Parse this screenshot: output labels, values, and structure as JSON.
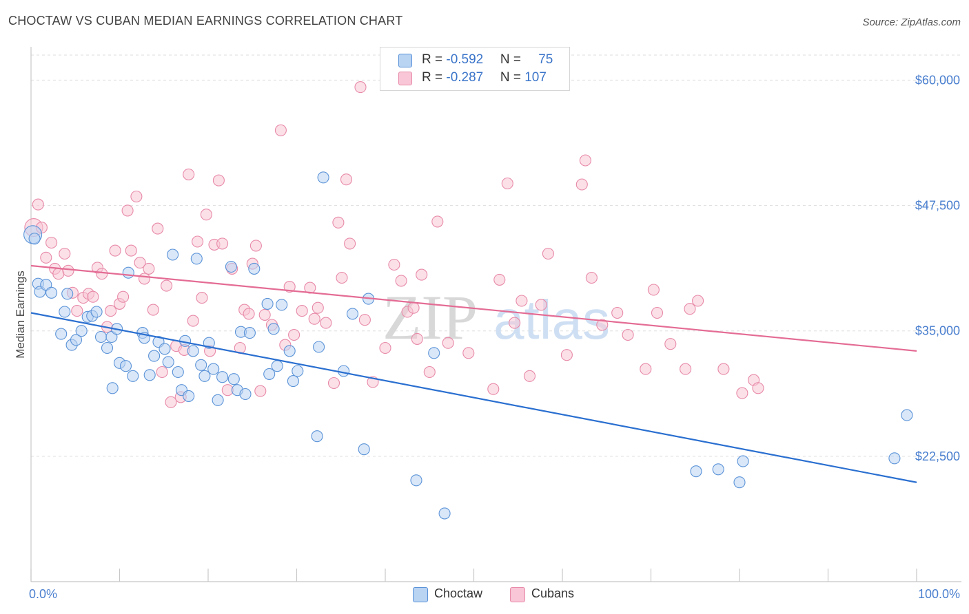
{
  "header": {
    "title": "CHOCTAW VS CUBAN MEDIAN EARNINGS CORRELATION CHART",
    "source": "Source: ZipAtlas.com"
  },
  "colors": {
    "choctaw_fill": "#b9d3f3",
    "choctaw_stroke": "#5b93d8",
    "choctaw_line": "#2a6fd0",
    "cubans_fill": "#f8c6d6",
    "cubans_stroke": "#e88aa8",
    "cubans_line": "#e46c94",
    "axis_text": "#4a7fcf",
    "grid": "#dddddd"
  },
  "legend": {
    "choctaw": {
      "r_label": "R = ",
      "r_value": "-0.592",
      "n_label": "N = ",
      "n_value": "75"
    },
    "cubans": {
      "r_label": "R = ",
      "r_value": "-0.287",
      "n_label": "N = ",
      "n_value": "107"
    }
  },
  "watermark": {
    "part1": "ZIP",
    "part2": "atlas"
  },
  "chart_data": {
    "type": "scatter",
    "title": "CHOCTAW VS CUBAN MEDIAN EARNINGS CORRELATION CHART",
    "xlabel": "",
    "ylabel": "Median Earnings",
    "xlim": [
      0,
      100
    ],
    "ylim": [
      10000,
      62500
    ],
    "x_tick_labels": [
      "0.0%",
      "100.0%"
    ],
    "y_ticks": [
      22500,
      35000,
      47500,
      60000
    ],
    "y_tick_labels": [
      "$22,500",
      "$35,000",
      "$47,500",
      "$60,000"
    ],
    "grid": true,
    "legend_position": "top-center",
    "series": [
      {
        "name": "Choctaw",
        "trend": {
          "x": [
            0,
            100
          ],
          "y": [
            36800,
            19900
          ]
        },
        "points": [
          [
            0.2,
            44600
          ],
          [
            0.8,
            39700
          ],
          [
            1.0,
            38900
          ],
          [
            1.7,
            39600
          ],
          [
            2.3,
            38800
          ],
          [
            3.4,
            34700
          ],
          [
            3.8,
            36900
          ],
          [
            4.1,
            38700
          ],
          [
            4.6,
            33600
          ],
          [
            5.1,
            34100
          ],
          [
            5.7,
            35000
          ],
          [
            6.4,
            36400
          ],
          [
            6.9,
            36500
          ],
          [
            7.4,
            36900
          ],
          [
            7.9,
            34400
          ],
          [
            8.6,
            33300
          ],
          [
            9.1,
            34400
          ],
          [
            9.2,
            29300
          ],
          [
            9.7,
            35200
          ],
          [
            10.0,
            31800
          ],
          [
            10.7,
            31500
          ],
          [
            11.0,
            40800
          ],
          [
            11.5,
            30500
          ],
          [
            12.6,
            34800
          ],
          [
            12.8,
            34300
          ],
          [
            13.4,
            30600
          ],
          [
            13.9,
            32500
          ],
          [
            14.4,
            33900
          ],
          [
            15.1,
            33200
          ],
          [
            15.5,
            31900
          ],
          [
            16.0,
            42600
          ],
          [
            16.6,
            30900
          ],
          [
            17.0,
            29100
          ],
          [
            17.4,
            34000
          ],
          [
            17.8,
            28500
          ],
          [
            18.3,
            33000
          ],
          [
            18.7,
            42200
          ],
          [
            19.2,
            31600
          ],
          [
            19.6,
            30500
          ],
          [
            20.1,
            33800
          ],
          [
            20.6,
            31200
          ],
          [
            21.1,
            28100
          ],
          [
            21.6,
            30400
          ],
          [
            22.6,
            41400
          ],
          [
            22.9,
            30200
          ],
          [
            23.3,
            29100
          ],
          [
            23.7,
            34900
          ],
          [
            24.2,
            28700
          ],
          [
            24.7,
            34800
          ],
          [
            25.2,
            41200
          ],
          [
            26.7,
            37700
          ],
          [
            26.9,
            30700
          ],
          [
            27.4,
            35200
          ],
          [
            27.8,
            31500
          ],
          [
            28.3,
            37600
          ],
          [
            29.2,
            33000
          ],
          [
            29.6,
            30000
          ],
          [
            30.1,
            31000
          ],
          [
            32.3,
            24500
          ],
          [
            32.5,
            33400
          ],
          [
            33.0,
            50300
          ],
          [
            35.3,
            31000
          ],
          [
            36.3,
            36700
          ],
          [
            37.6,
            23200
          ],
          [
            38.1,
            38200
          ],
          [
            43.5,
            20100
          ],
          [
            45.5,
            32800
          ],
          [
            46.7,
            16800
          ],
          [
            75.1,
            21000
          ],
          [
            77.6,
            21200
          ],
          [
            80.0,
            19900
          ],
          [
            80.4,
            22000
          ],
          [
            97.5,
            22300
          ],
          [
            98.9,
            26600
          ],
          [
            0.4,
            44200
          ]
        ]
      },
      {
        "name": "Cubans",
        "trend": {
          "x": [
            0,
            100
          ],
          "y": [
            41500,
            33000
          ]
        },
        "points": [
          [
            0.3,
            45300
          ],
          [
            0.8,
            47600
          ],
          [
            1.2,
            45300
          ],
          [
            1.7,
            42300
          ],
          [
            2.3,
            43800
          ],
          [
            2.7,
            41200
          ],
          [
            3.1,
            40700
          ],
          [
            3.8,
            42700
          ],
          [
            4.2,
            41000
          ],
          [
            4.7,
            38800
          ],
          [
            5.2,
            37000
          ],
          [
            5.9,
            38300
          ],
          [
            6.5,
            38700
          ],
          [
            7.0,
            38400
          ],
          [
            7.5,
            41300
          ],
          [
            8.0,
            40700
          ],
          [
            8.6,
            35400
          ],
          [
            9.0,
            37000
          ],
          [
            9.5,
            43000
          ],
          [
            10.0,
            37700
          ],
          [
            10.4,
            38400
          ],
          [
            10.9,
            47000
          ],
          [
            11.3,
            43000
          ],
          [
            11.9,
            48400
          ],
          [
            12.3,
            41800
          ],
          [
            12.8,
            40200
          ],
          [
            13.3,
            41200
          ],
          [
            13.8,
            37100
          ],
          [
            14.3,
            45200
          ],
          [
            14.8,
            30900
          ],
          [
            15.3,
            39500
          ],
          [
            15.8,
            27900
          ],
          [
            16.4,
            33500
          ],
          [
            16.9,
            28400
          ],
          [
            17.3,
            33100
          ],
          [
            17.8,
            50600
          ],
          [
            18.3,
            36000
          ],
          [
            18.8,
            43900
          ],
          [
            19.3,
            38300
          ],
          [
            19.8,
            46600
          ],
          [
            20.2,
            33000
          ],
          [
            20.7,
            43600
          ],
          [
            21.2,
            50000
          ],
          [
            21.6,
            43700
          ],
          [
            22.2,
            29100
          ],
          [
            22.7,
            41200
          ],
          [
            23.6,
            33300
          ],
          [
            24.1,
            37100
          ],
          [
            24.6,
            36700
          ],
          [
            25.0,
            41700
          ],
          [
            25.4,
            43500
          ],
          [
            25.9,
            29000
          ],
          [
            26.4,
            36600
          ],
          [
            27.2,
            35600
          ],
          [
            28.2,
            55000
          ],
          [
            28.7,
            33600
          ],
          [
            29.2,
            39400
          ],
          [
            29.7,
            34600
          ],
          [
            30.6,
            37000
          ],
          [
            31.5,
            39300
          ],
          [
            32.0,
            36200
          ],
          [
            32.4,
            37300
          ],
          [
            33.3,
            35800
          ],
          [
            34.2,
            29800
          ],
          [
            34.7,
            45800
          ],
          [
            35.1,
            40300
          ],
          [
            35.6,
            50100
          ],
          [
            36.0,
            43700
          ],
          [
            37.2,
            59300
          ],
          [
            37.7,
            36100
          ],
          [
            38.6,
            29900
          ],
          [
            40.0,
            33300
          ],
          [
            41.0,
            41600
          ],
          [
            41.8,
            40000
          ],
          [
            42.5,
            36900
          ],
          [
            43.2,
            37300
          ],
          [
            43.6,
            34200
          ],
          [
            44.1,
            40600
          ],
          [
            45.0,
            30900
          ],
          [
            45.9,
            45900
          ],
          [
            47.1,
            33800
          ],
          [
            49.4,
            32800
          ],
          [
            52.2,
            29200
          ],
          [
            52.9,
            40100
          ],
          [
            53.8,
            49700
          ],
          [
            54.6,
            35800
          ],
          [
            55.4,
            38000
          ],
          [
            56.3,
            30500
          ],
          [
            57.6,
            37600
          ],
          [
            58.4,
            42700
          ],
          [
            60.5,
            32600
          ],
          [
            62.2,
            49600
          ],
          [
            62.6,
            52000
          ],
          [
            63.3,
            40300
          ],
          [
            64.5,
            35600
          ],
          [
            66.2,
            36800
          ],
          [
            67.4,
            34600
          ],
          [
            69.4,
            31200
          ],
          [
            70.3,
            39100
          ],
          [
            70.7,
            36800
          ],
          [
            72.2,
            33700
          ],
          [
            73.9,
            31200
          ],
          [
            74.4,
            37200
          ],
          [
            75.3,
            38000
          ],
          [
            78.2,
            31200
          ],
          [
            80.3,
            28800
          ],
          [
            81.6,
            30100
          ],
          [
            82.1,
            29300
          ]
        ]
      }
    ]
  },
  "bottom_legend": {
    "choctaw": "Choctaw",
    "cubans": "Cubans"
  }
}
